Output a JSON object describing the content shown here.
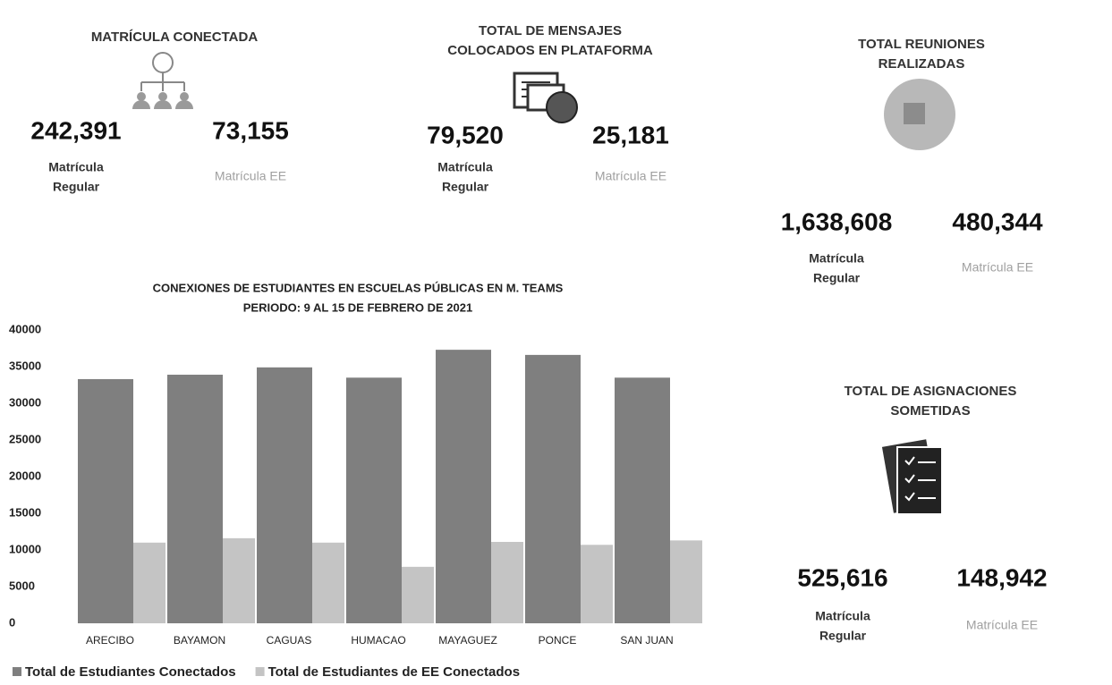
{
  "stats": [
    {
      "title": [
        "MATRÍCULA CONECTADA"
      ],
      "regular": "242,391",
      "regular_label": [
        "Matrícula",
        "Regular"
      ],
      "ee": "73,155",
      "ee_label": [
        "Matrícula EE"
      ]
    },
    {
      "title": [
        "TOTAL DE MENSAJES",
        "COLOCADOS EN PLATAFORMA"
      ],
      "regular": "79,520",
      "regular_label": [
        "Matrícula",
        "Regular"
      ],
      "ee": "25,181",
      "ee_label": [
        "Matrícula EE"
      ]
    },
    {
      "title": [
        "TOTAL REUNIONES",
        "REALIZADAS"
      ],
      "regular": "1,638,608",
      "regular_label": [
        "Matrícula",
        "Regular"
      ],
      "ee": "480,344",
      "ee_label": [
        "Matrícula EE"
      ]
    },
    {
      "title": [
        "TOTAL DE ASIGNACIONES",
        "SOMETIDAS"
      ],
      "regular": "525,616",
      "regular_label": [
        "Matrícula",
        "Regular"
      ],
      "ee": "148,942",
      "ee_label": [
        "Matrícula EE"
      ]
    }
  ],
  "chart_data": {
    "type": "bar",
    "title": [
      "CONEXIONES DE ESTUDIANTES EN ESCUELAS PÚBLICAS EN M. TEAMS",
      "PERIODO:  9 AL 15 DE FEBRERO DE 2021"
    ],
    "categories": [
      "ARECIBO",
      "BAYAMON",
      "CAGUAS",
      "HUMACAO",
      "MAYAGUEZ",
      "PONCE",
      "SAN JUAN"
    ],
    "series": [
      {
        "name": "Total de Estudiantes Conectados",
        "color": "#7f7f7f",
        "values": [
          33300,
          33900,
          34900,
          33500,
          37300,
          36600,
          33500
        ]
      },
      {
        "name": "Total de Estudiantes de EE Conectados",
        "color": "#c4c4c4",
        "values": [
          11000,
          11600,
          11000,
          7700,
          11100,
          10700,
          11300
        ]
      }
    ],
    "ylim": [
      0,
      40000
    ],
    "yticks": [
      0,
      5000,
      10000,
      15000,
      20000,
      25000,
      30000,
      35000,
      40000
    ],
    "grid": false,
    "legend": "bottom"
  }
}
